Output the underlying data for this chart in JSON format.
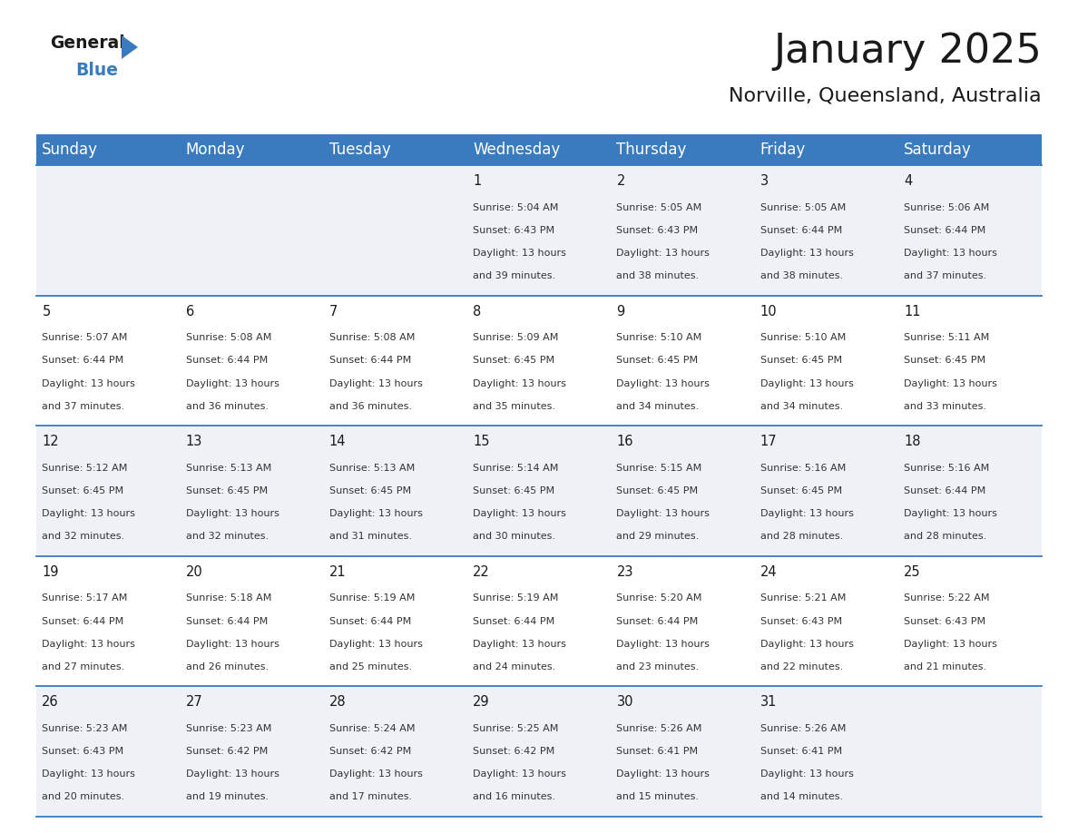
{
  "title": "January 2025",
  "subtitle": "Norville, Queensland, Australia",
  "header_bg": "#3a7bbf",
  "header_text": "#ffffff",
  "cell_bg_odd": "#eef2f7",
  "cell_bg_even": "#ffffff",
  "row_line_color": "#3a7bbf",
  "days_of_week": [
    "Sunday",
    "Monday",
    "Tuesday",
    "Wednesday",
    "Thursday",
    "Friday",
    "Saturday"
  ],
  "calendar_data": [
    [
      {
        "day": "",
        "sunrise": "",
        "sunset": "",
        "daylight": ""
      },
      {
        "day": "",
        "sunrise": "",
        "sunset": "",
        "daylight": ""
      },
      {
        "day": "",
        "sunrise": "",
        "sunset": "",
        "daylight": ""
      },
      {
        "day": "1",
        "sunrise": "5:04 AM",
        "sunset": "6:43 PM",
        "daylight_line1": "Daylight: 13 hours",
        "daylight_line2": "and 39 minutes."
      },
      {
        "day": "2",
        "sunrise": "5:05 AM",
        "sunset": "6:43 PM",
        "daylight_line1": "Daylight: 13 hours",
        "daylight_line2": "and 38 minutes."
      },
      {
        "day": "3",
        "sunrise": "5:05 AM",
        "sunset": "6:44 PM",
        "daylight_line1": "Daylight: 13 hours",
        "daylight_line2": "and 38 minutes."
      },
      {
        "day": "4",
        "sunrise": "5:06 AM",
        "sunset": "6:44 PM",
        "daylight_line1": "Daylight: 13 hours",
        "daylight_line2": "and 37 minutes."
      }
    ],
    [
      {
        "day": "5",
        "sunrise": "5:07 AM",
        "sunset": "6:44 PM",
        "daylight_line1": "Daylight: 13 hours",
        "daylight_line2": "and 37 minutes."
      },
      {
        "day": "6",
        "sunrise": "5:08 AM",
        "sunset": "6:44 PM",
        "daylight_line1": "Daylight: 13 hours",
        "daylight_line2": "and 36 minutes."
      },
      {
        "day": "7",
        "sunrise": "5:08 AM",
        "sunset": "6:44 PM",
        "daylight_line1": "Daylight: 13 hours",
        "daylight_line2": "and 36 minutes."
      },
      {
        "day": "8",
        "sunrise": "5:09 AM",
        "sunset": "6:45 PM",
        "daylight_line1": "Daylight: 13 hours",
        "daylight_line2": "and 35 minutes."
      },
      {
        "day": "9",
        "sunrise": "5:10 AM",
        "sunset": "6:45 PM",
        "daylight_line1": "Daylight: 13 hours",
        "daylight_line2": "and 34 minutes."
      },
      {
        "day": "10",
        "sunrise": "5:10 AM",
        "sunset": "6:45 PM",
        "daylight_line1": "Daylight: 13 hours",
        "daylight_line2": "and 34 minutes."
      },
      {
        "day": "11",
        "sunrise": "5:11 AM",
        "sunset": "6:45 PM",
        "daylight_line1": "Daylight: 13 hours",
        "daylight_line2": "and 33 minutes."
      }
    ],
    [
      {
        "day": "12",
        "sunrise": "5:12 AM",
        "sunset": "6:45 PM",
        "daylight_line1": "Daylight: 13 hours",
        "daylight_line2": "and 32 minutes."
      },
      {
        "day": "13",
        "sunrise": "5:13 AM",
        "sunset": "6:45 PM",
        "daylight_line1": "Daylight: 13 hours",
        "daylight_line2": "and 32 minutes."
      },
      {
        "day": "14",
        "sunrise": "5:13 AM",
        "sunset": "6:45 PM",
        "daylight_line1": "Daylight: 13 hours",
        "daylight_line2": "and 31 minutes."
      },
      {
        "day": "15",
        "sunrise": "5:14 AM",
        "sunset": "6:45 PM",
        "daylight_line1": "Daylight: 13 hours",
        "daylight_line2": "and 30 minutes."
      },
      {
        "day": "16",
        "sunrise": "5:15 AM",
        "sunset": "6:45 PM",
        "daylight_line1": "Daylight: 13 hours",
        "daylight_line2": "and 29 minutes."
      },
      {
        "day": "17",
        "sunrise": "5:16 AM",
        "sunset": "6:45 PM",
        "daylight_line1": "Daylight: 13 hours",
        "daylight_line2": "and 28 minutes."
      },
      {
        "day": "18",
        "sunrise": "5:16 AM",
        "sunset": "6:44 PM",
        "daylight_line1": "Daylight: 13 hours",
        "daylight_line2": "and 28 minutes."
      }
    ],
    [
      {
        "day": "19",
        "sunrise": "5:17 AM",
        "sunset": "6:44 PM",
        "daylight_line1": "Daylight: 13 hours",
        "daylight_line2": "and 27 minutes."
      },
      {
        "day": "20",
        "sunrise": "5:18 AM",
        "sunset": "6:44 PM",
        "daylight_line1": "Daylight: 13 hours",
        "daylight_line2": "and 26 minutes."
      },
      {
        "day": "21",
        "sunrise": "5:19 AM",
        "sunset": "6:44 PM",
        "daylight_line1": "Daylight: 13 hours",
        "daylight_line2": "and 25 minutes."
      },
      {
        "day": "22",
        "sunrise": "5:19 AM",
        "sunset": "6:44 PM",
        "daylight_line1": "Daylight: 13 hours",
        "daylight_line2": "and 24 minutes."
      },
      {
        "day": "23",
        "sunrise": "5:20 AM",
        "sunset": "6:44 PM",
        "daylight_line1": "Daylight: 13 hours",
        "daylight_line2": "and 23 minutes."
      },
      {
        "day": "24",
        "sunrise": "5:21 AM",
        "sunset": "6:43 PM",
        "daylight_line1": "Daylight: 13 hours",
        "daylight_line2": "and 22 minutes."
      },
      {
        "day": "25",
        "sunrise": "5:22 AM",
        "sunset": "6:43 PM",
        "daylight_line1": "Daylight: 13 hours",
        "daylight_line2": "and 21 minutes."
      }
    ],
    [
      {
        "day": "26",
        "sunrise": "5:23 AM",
        "sunset": "6:43 PM",
        "daylight_line1": "Daylight: 13 hours",
        "daylight_line2": "and 20 minutes."
      },
      {
        "day": "27",
        "sunrise": "5:23 AM",
        "sunset": "6:42 PM",
        "daylight_line1": "Daylight: 13 hours",
        "daylight_line2": "and 19 minutes."
      },
      {
        "day": "28",
        "sunrise": "5:24 AM",
        "sunset": "6:42 PM",
        "daylight_line1": "Daylight: 13 hours",
        "daylight_line2": "and 17 minutes."
      },
      {
        "day": "29",
        "sunrise": "5:25 AM",
        "sunset": "6:42 PM",
        "daylight_line1": "Daylight: 13 hours",
        "daylight_line2": "and 16 minutes."
      },
      {
        "day": "30",
        "sunrise": "5:26 AM",
        "sunset": "6:41 PM",
        "daylight_line1": "Daylight: 13 hours",
        "daylight_line2": "and 15 minutes."
      },
      {
        "day": "31",
        "sunrise": "5:26 AM",
        "sunset": "6:41 PM",
        "daylight_line1": "Daylight: 13 hours",
        "daylight_line2": "and 14 minutes."
      },
      {
        "day": "",
        "sunrise": "",
        "sunset": "",
        "daylight_line1": "",
        "daylight_line2": ""
      }
    ]
  ],
  "logo_general_color": "#1a1a1a",
  "logo_blue_color": "#3a7bbf",
  "title_fontsize": 32,
  "subtitle_fontsize": 16,
  "header_fontsize": 12,
  "day_num_fontsize": 10.5,
  "cell_text_fontsize": 8.0
}
